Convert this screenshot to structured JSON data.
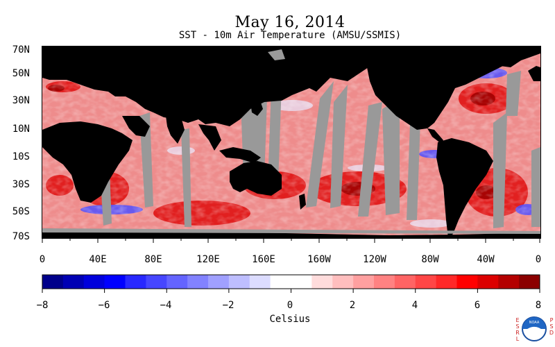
{
  "header": {
    "title": "May 16, 2014",
    "subtitle": "SST - 10m Air Temperature (AMSU/SSMIS)"
  },
  "map": {
    "lat_labels": [
      "70N",
      "50N",
      "30N",
      "10N",
      "10S",
      "30S",
      "50S",
      "70S"
    ],
    "lon_labels": [
      "0",
      "40E",
      "80E",
      "120E",
      "160E",
      "160W",
      "120W",
      "80W",
      "40W",
      "0"
    ],
    "colors": {
      "land": "#000000",
      "no_data": "#999999"
    }
  },
  "colorbar": {
    "units": "Celsius",
    "tick_labels": [
      "−8",
      "−6",
      "−4",
      "−2",
      "0",
      "2",
      "4",
      "6",
      "8"
    ],
    "range": [
      -8,
      8
    ],
    "colors": [
      "#00008b",
      "#0000b4",
      "#0000dc",
      "#0000ff",
      "#2828ff",
      "#4646ff",
      "#6464ff",
      "#8282ff",
      "#a0a0ff",
      "#bebeff",
      "#dcdcff",
      "#ffffff",
      "#ffffff",
      "#ffdcdc",
      "#ffbebe",
      "#ffa0a0",
      "#ff8282",
      "#ff6464",
      "#ff4646",
      "#ff2828",
      "#ff0000",
      "#dc0000",
      "#b40000",
      "#8b0000"
    ]
  },
  "logo": {
    "left_letters": "ESRL",
    "right_letters": "PSD",
    "center_text": "NOAA"
  }
}
